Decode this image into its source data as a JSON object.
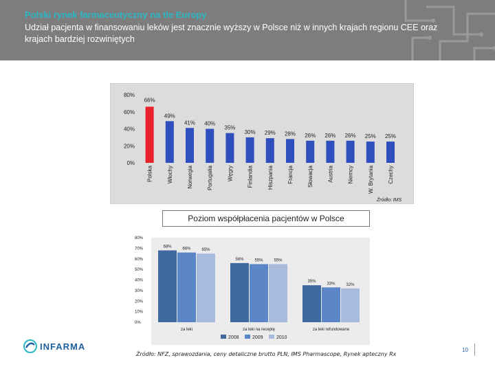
{
  "header": {
    "title": "Polski rynek farmaceutyczny na tle Europy",
    "subtitle": "Udział pacjenta w finansowaniu leków jest znacznie wyższy w Polsce niż w innych krajach regionu CEE oraz krajach bardziej rozwiniętych"
  },
  "colors": {
    "highlight": "#e8212b",
    "bar": "#2f4fbf",
    "s2008": "#3e6aa1",
    "s2009": "#5b87c8",
    "s2010": "#a9bbdd"
  },
  "chart_data": [
    {
      "type": "bar",
      "title": "",
      "categories": [
        "Polska",
        "Włochy",
        "Norwegia",
        "Portugalia",
        "Węgry",
        "Finlandia",
        "Hiszpania",
        "Francja",
        "Słowacja",
        "Austria",
        "Niemcy",
        "W. Brytania",
        "Czechy"
      ],
      "values": [
        66,
        49,
        41,
        40,
        35,
        30,
        29,
        28,
        26,
        26,
        26,
        25,
        25
      ],
      "value_labels": [
        "66%",
        "49%",
        "41%",
        "40%",
        "35%",
        "30%",
        "29%",
        "28%",
        "26%",
        "26%",
        "26%",
        "25%",
        "25%"
      ],
      "yticks": [
        "80%",
        "60%",
        "40%",
        "20%",
        "0%"
      ],
      "ylim": [
        0,
        80
      ],
      "grid": false,
      "source": "Źródło: IMS"
    },
    {
      "type": "bar",
      "title": "Poziom współpłacenia pacjentów w Polsce",
      "categories": [
        "za leki",
        "za leki na receptę",
        "za leki refundowane"
      ],
      "series": [
        {
          "name": "2008",
          "values": [
            68,
            56,
            35
          ],
          "labels": [
            "68%",
            "56%",
            "35%"
          ]
        },
        {
          "name": "2009",
          "values": [
            66,
            55,
            33
          ],
          "labels": [
            "66%",
            "55%",
            "33%"
          ]
        },
        {
          "name": "2010",
          "values": [
            65,
            55,
            32
          ],
          "labels": [
            "65%",
            "55%",
            "32%"
          ]
        }
      ],
      "yticks": [
        "80%",
        "70%",
        "60%",
        "50%",
        "40%",
        "30%",
        "20%",
        "10%",
        "0%"
      ],
      "ylim": [
        0,
        80
      ],
      "legend": "bottom",
      "source": "Źródło: NFZ, sprawozdania, ceny detaliczne brutto PLN, IMS Pharmascope, Rynek apteczny Rx"
    }
  ],
  "footer": {
    "brand": "INFARMA",
    "page": "10"
  }
}
